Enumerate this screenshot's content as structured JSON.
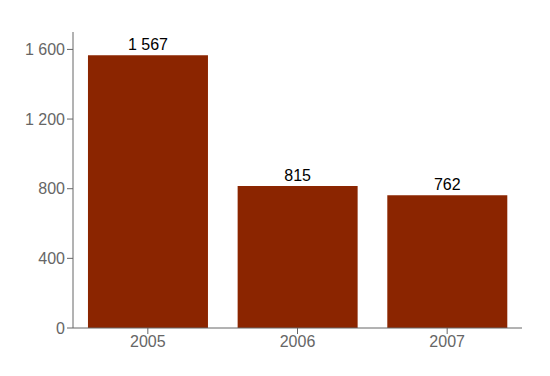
{
  "chart_data": {
    "type": "bar",
    "categories": [
      "2005",
      "2006",
      "2007"
    ],
    "values": [
      1567,
      815,
      762
    ],
    "value_labels": [
      "1 567",
      "815",
      "762"
    ],
    "data_labels": true,
    "color": "#8B2500",
    "ylim": [
      0,
      1700
    ],
    "yticks": [
      0,
      400,
      800,
      {
        "value": 1200,
        "label": "1 200"
      },
      {
        "value": 1600,
        "label": "1 600"
      }
    ],
    "grid": false
  }
}
